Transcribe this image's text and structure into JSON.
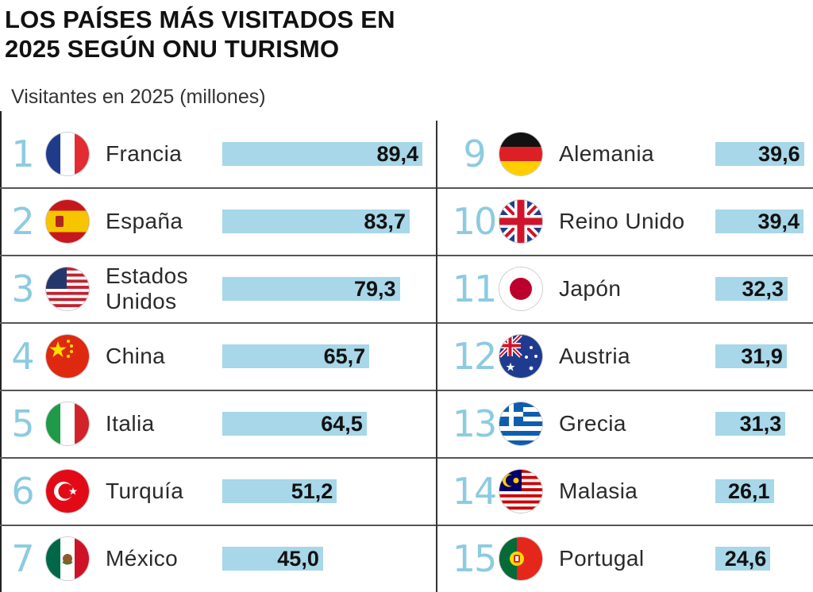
{
  "title_line1": "LOS PAÍSES MÁS VISITADOS EN",
  "title_line2": "2025 SEGÚN ONU TURISMO",
  "subtitle": "Visitantes en 2025 (millones)",
  "colors": {
    "bar": "#a7d7e8",
    "rank": "#8ccbe0",
    "text": "#1a1a1a"
  },
  "chart_data": {
    "type": "bar",
    "orientation": "horizontal",
    "title": "LOS PAÍSES MÁS VISITADOS EN 2025 SEGÚN ONU TURISMO",
    "subtitle": "Visitantes en 2025 (millones)",
    "categories": [
      "Francia",
      "España",
      "Estados Unidos",
      "China",
      "Italia",
      "Turquía",
      "México",
      "Alemania",
      "Reino Unido",
      "Japón",
      "Austria",
      "Grecia",
      "Malasia",
      "Portugal"
    ],
    "values": [
      89.4,
      83.7,
      79.3,
      65.7,
      64.5,
      51.2,
      45.0,
      39.6,
      39.4,
      32.3,
      31.9,
      31.3,
      26.1,
      24.6
    ],
    "rows": [
      {
        "rank": "1",
        "name": "Francia",
        "value": 89.4,
        "label": "89,4",
        "flag": "france-flag-icon"
      },
      {
        "rank": "2",
        "name": "España",
        "value": 83.7,
        "label": "83,7",
        "flag": "spain-flag-icon"
      },
      {
        "rank": "3",
        "name": "Estados Unidos",
        "value": 79.3,
        "label": "79,3",
        "flag": "usa-flag-icon"
      },
      {
        "rank": "4",
        "name": "China",
        "value": 65.7,
        "label": "65,7",
        "flag": "china-flag-icon"
      },
      {
        "rank": "5",
        "name": "Italia",
        "value": 64.5,
        "label": "64,5",
        "flag": "italy-flag-icon"
      },
      {
        "rank": "6",
        "name": "Turquía",
        "value": 51.2,
        "label": "51,2",
        "flag": "turkey-flag-icon"
      },
      {
        "rank": "7",
        "name": "México",
        "value": 45.0,
        "label": "45,0",
        "flag": "mexico-flag-icon"
      },
      {
        "rank": "9",
        "name": "Alemania",
        "value": 39.6,
        "label": "39,6",
        "flag": "germany-flag-icon"
      },
      {
        "rank": "10",
        "name": "Reino Unido",
        "value": 39.4,
        "label": "39,4",
        "flag": "uk-flag-icon"
      },
      {
        "rank": "11",
        "name": "Japón",
        "value": 32.3,
        "label": "32,3",
        "flag": "japan-flag-icon"
      },
      {
        "rank": "12",
        "name": "Austria",
        "value": 31.9,
        "label": "31,9",
        "flag": "australia-flag-icon"
      },
      {
        "rank": "13",
        "name": "Grecia",
        "value": 31.3,
        "label": "31,3",
        "flag": "greece-flag-icon"
      },
      {
        "rank": "14",
        "name": "Malasia",
        "value": 26.1,
        "label": "26,1",
        "flag": "malaysia-flag-icon"
      },
      {
        "rank": "15",
        "name": "Portugal",
        "value": 24.6,
        "label": "24,6",
        "flag": "portugal-flag-icon"
      }
    ]
  }
}
